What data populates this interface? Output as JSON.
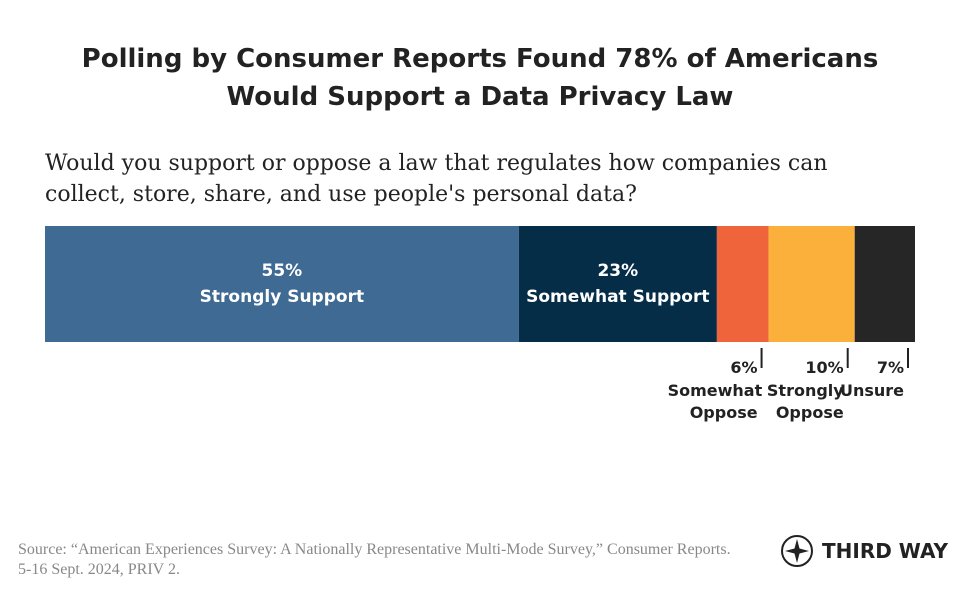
{
  "chart_data": {
    "type": "stacked-bar",
    "title": "Polling by Consumer Reports Found 78% of Americans Would Support a Data Privacy Law",
    "subtitle": "Would you support or oppose a law that regulates how companies can collect, store, share, and use people's personal data?",
    "series": [
      {
        "name": "Strongly Support",
        "color": "#3f6a93",
        "values": [
          55
        ],
        "value_labels": [
          "55%"
        ]
      },
      {
        "name": "Somewhat Support",
        "color": "#062d48",
        "values": [
          23
        ],
        "value_labels": [
          "23%"
        ]
      },
      {
        "name": "Somewhat Oppose",
        "color": "#f0643b",
        "values": [
          6
        ],
        "value_labels": [
          "6%"
        ]
      },
      {
        "name": "Strongly Oppose",
        "color": "#fbb03b",
        "values": [
          10
        ],
        "value_labels": [
          "10%"
        ]
      },
      {
        "name": "Unsure",
        "color": "#262626",
        "values": [
          7
        ],
        "value_labels": [
          "7%"
        ]
      }
    ],
    "source": "Source: “American Experiences Survey: A Nationally Representative Multi-Mode Survey,” Consumer Reports. 5-16 Sept. 2024, PRIV 2.",
    "logo": "THIRD WAY"
  }
}
